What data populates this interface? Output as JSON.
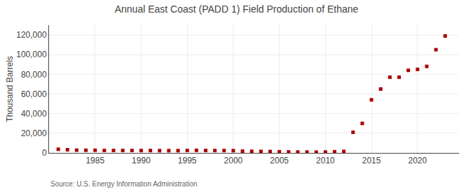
{
  "chart_data": {
    "type": "scatter",
    "title": "Annual East Coast (PADD 1) Field Production of Ethane",
    "ylabel": "Thousand Barrels",
    "annotations": [
      "Source: U.S. Energy Information Administration"
    ],
    "x": [
      1981,
      1982,
      1983,
      1984,
      1985,
      1986,
      1987,
      1988,
      1989,
      1990,
      1991,
      1992,
      1993,
      1994,
      1995,
      1996,
      1997,
      1998,
      1999,
      2000,
      2001,
      2002,
      2003,
      2004,
      2005,
      2006,
      2007,
      2008,
      2009,
      2010,
      2011,
      2012,
      2013,
      2014,
      2015,
      2016,
      2017,
      2018,
      2019,
      2020,
      2021,
      2022,
      2023
    ],
    "values": [
      3700,
      3200,
      2800,
      2700,
      2700,
      2500,
      2500,
      2500,
      2500,
      2400,
      2400,
      2300,
      2300,
      2300,
      2500,
      2600,
      2500,
      2400,
      2400,
      2300,
      1800,
      1600,
      1500,
      1400,
      1200,
      1000,
      900,
      900,
      800,
      900,
      1200,
      1500,
      21000,
      30000,
      54000,
      65000,
      77000,
      77000,
      84000,
      85000,
      88000,
      105000,
      119000
    ],
    "color": "#aa0000",
    "marker": "square",
    "xlim": [
      1980,
      2024.5
    ],
    "xticks": [
      1985,
      1990,
      1995,
      2000,
      2005,
      2010,
      2015,
      2020
    ],
    "ylim": [
      0,
      130000
    ],
    "yticks": [
      0,
      {
        "value": 20000,
        "label": "20,000"
      },
      {
        "value": 40000,
        "label": "40,000"
      },
      {
        "value": 60000,
        "label": "60,000"
      },
      {
        "value": 80000,
        "label": "80,000"
      },
      {
        "value": 100000,
        "label": "100,000"
      },
      {
        "value": 120000,
        "label": "120,000"
      }
    ],
    "grid": true
  }
}
